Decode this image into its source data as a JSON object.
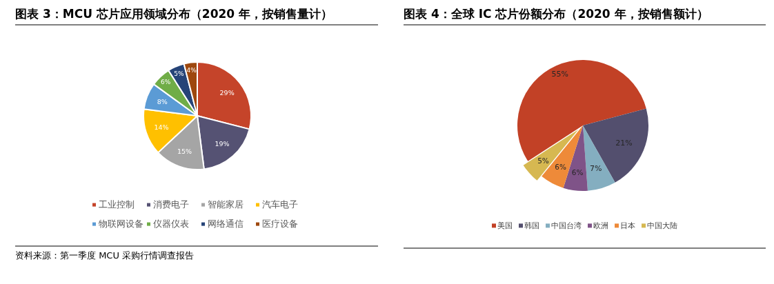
{
  "chart_data": [
    {
      "type": "pie",
      "title": "图表 3：MCU 芯片应用领域分布（2020 年，按销售量计）",
      "categories": [
        "工业控制",
        "消费电子",
        "智能家居",
        "汽车电子",
        "物联网设备",
        "仪器仪表",
        "网络通信",
        "医疗设备"
      ],
      "values": [
        29,
        19,
        15,
        14,
        8,
        6,
        5,
        4
      ],
      "value_labels": [
        "29%",
        "19%",
        "15%",
        "14%",
        "8%",
        "6%",
        "5%",
        "4%"
      ],
      "colors": [
        "#c5442a",
        "#555273",
        "#a5a5a5",
        "#ffc000",
        "#5b9bd5",
        "#70ad47",
        "#264478",
        "#9e480e"
      ],
      "legend": "bottom",
      "annotations": [
        "资料来源：第一季度 MCU 采购行情调查报告"
      ]
    },
    {
      "type": "pie",
      "title": "图表 4：全球 IC 芯片份额分布（2020 年，按销售额计）",
      "categories": [
        "美国",
        "韩国",
        "中国台湾",
        "欧洲",
        "日本",
        "中国大陆"
      ],
      "values": [
        55,
        21,
        7,
        6,
        6,
        5
      ],
      "value_labels": [
        "55%",
        "21%",
        "7%",
        "6%",
        "6%",
        "5%"
      ],
      "colors": [
        "#c24126",
        "#534f6e",
        "#84aec0",
        "#7f5388",
        "#ee8a39",
        "#d6b851"
      ],
      "legend": "bottom"
    }
  ]
}
